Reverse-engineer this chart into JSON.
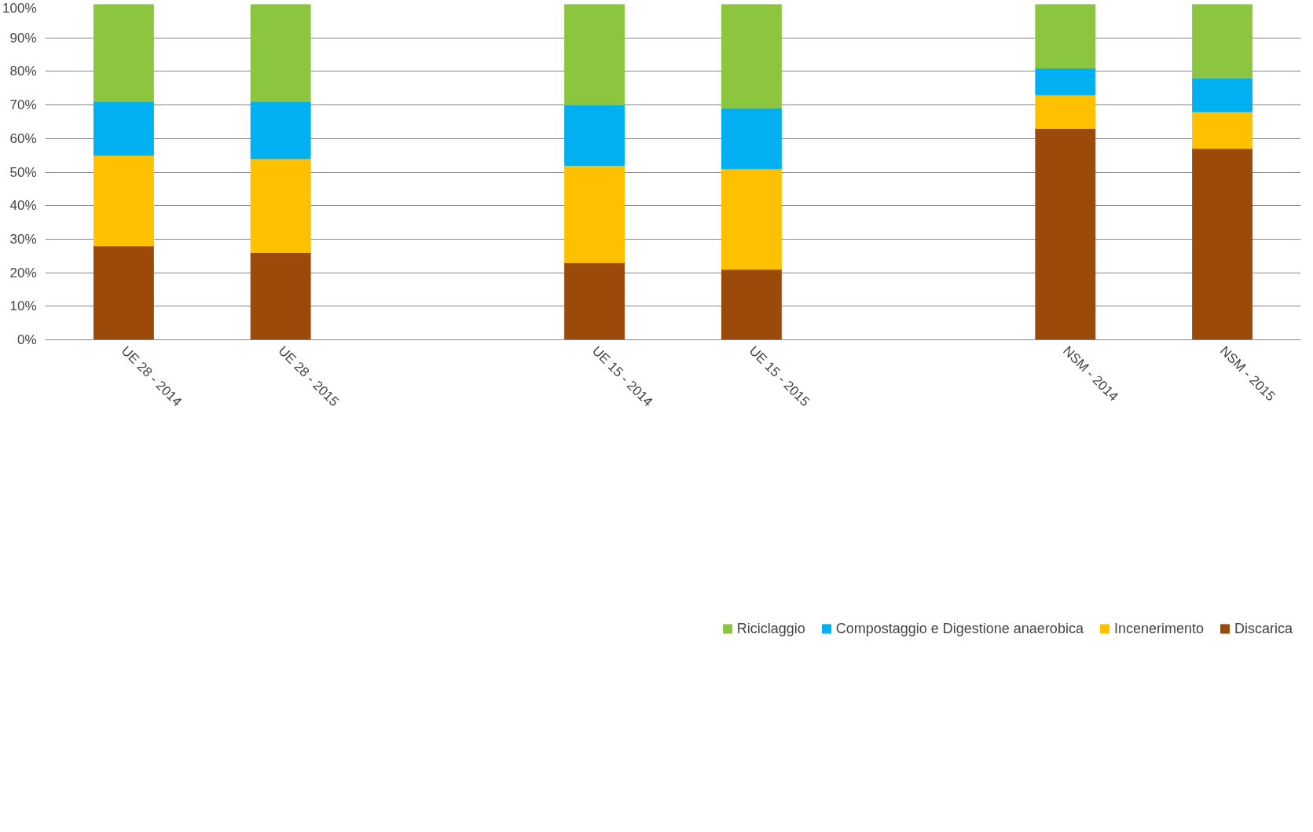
{
  "chart_data": {
    "type": "bar",
    "stacked": true,
    "categories": [
      "UE 28 - 2014",
      "UE 28 - 2015",
      null,
      "UE 15 - 2014",
      "UE 15 - 2015",
      null,
      "NSM - 2014",
      "NSM - 2015"
    ],
    "series": [
      {
        "name": "Discarica",
        "color": "#9c4a0a",
        "values": [
          28,
          26,
          null,
          23,
          21,
          null,
          63,
          57
        ]
      },
      {
        "name": "Incenerimento",
        "color": "#ffc000",
        "values": [
          27,
          28,
          null,
          29,
          30,
          null,
          10,
          11
        ]
      },
      {
        "name": "Compostaggio e Digestione anaerobica",
        "color": "#00b0f0",
        "values": [
          16,
          17,
          null,
          18,
          18,
          null,
          8,
          10
        ]
      },
      {
        "name": "Riciclaggio",
        "color": "#8cc63f",
        "values": [
          29,
          29,
          null,
          30,
          31,
          null,
          19,
          22
        ]
      }
    ],
    "ylim": [
      0,
      100
    ],
    "yticks": [
      {
        "value": 0,
        "label": "0%"
      },
      {
        "value": 10,
        "label": "10%"
      },
      {
        "value": 20,
        "label": "20%"
      },
      {
        "value": 30,
        "label": "30%"
      },
      {
        "value": 40,
        "label": "40%"
      },
      {
        "value": 50,
        "label": "50%"
      },
      {
        "value": 60,
        "label": "60%"
      },
      {
        "value": 70,
        "label": "70%"
      },
      {
        "value": 80,
        "label": "80%"
      },
      {
        "value": 90,
        "label": "90%"
      },
      {
        "value": 100,
        "label": "100%"
      }
    ],
    "grid": "y",
    "legend": "bottom"
  }
}
